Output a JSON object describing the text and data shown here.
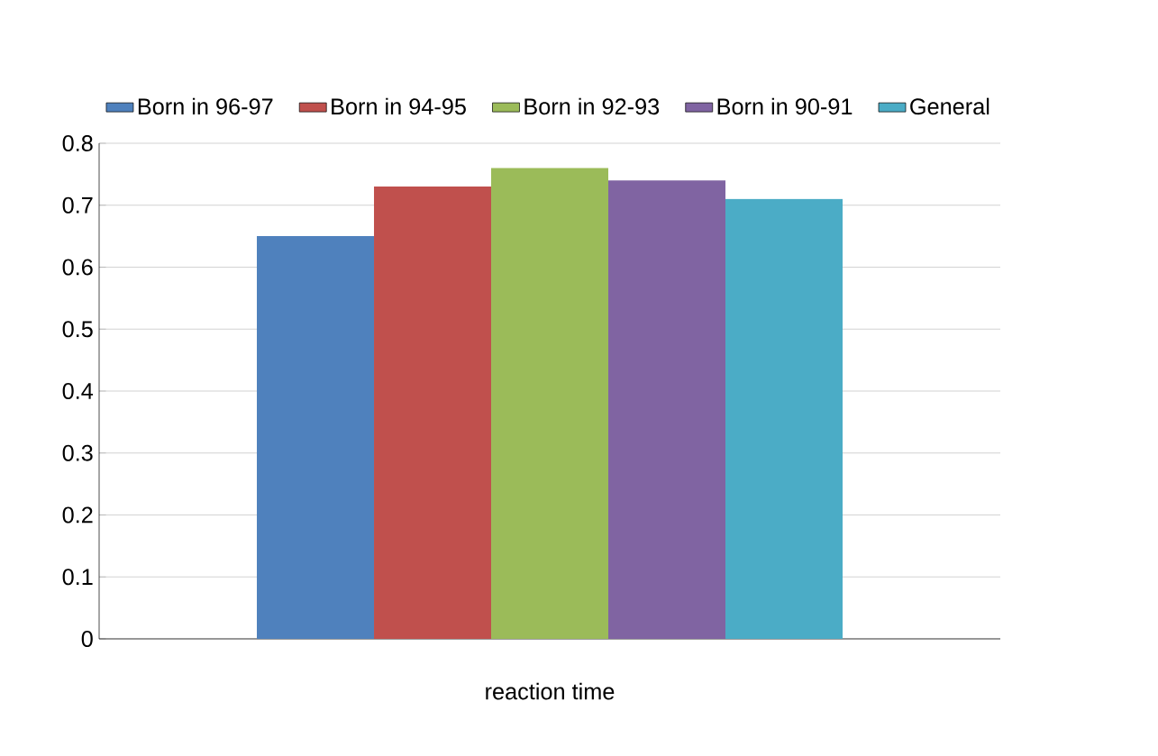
{
  "chart_data": {
    "type": "bar",
    "categories": [
      "reaction time"
    ],
    "series": [
      {
        "name": "Born in 96-97",
        "color": "#4f81bd",
        "values": [
          0.65
        ]
      },
      {
        "name": "Born  in 94-95",
        "color": "#c0504d",
        "values": [
          0.73
        ]
      },
      {
        "name": "Born in 92-93",
        "color": "#9bbb59",
        "values": [
          0.76
        ]
      },
      {
        "name": "Born in 90-91",
        "color": "#8064a2",
        "values": [
          0.74
        ]
      },
      {
        "name": "General",
        "color": "#4bacc6",
        "values": [
          0.71
        ]
      }
    ],
    "ylim": [
      0,
      0.8
    ],
    "yticks": [
      0,
      0.1,
      0.2,
      0.3,
      0.4,
      0.5,
      0.6,
      0.7,
      0.8
    ],
    "grid": "y",
    "legend": "top"
  }
}
